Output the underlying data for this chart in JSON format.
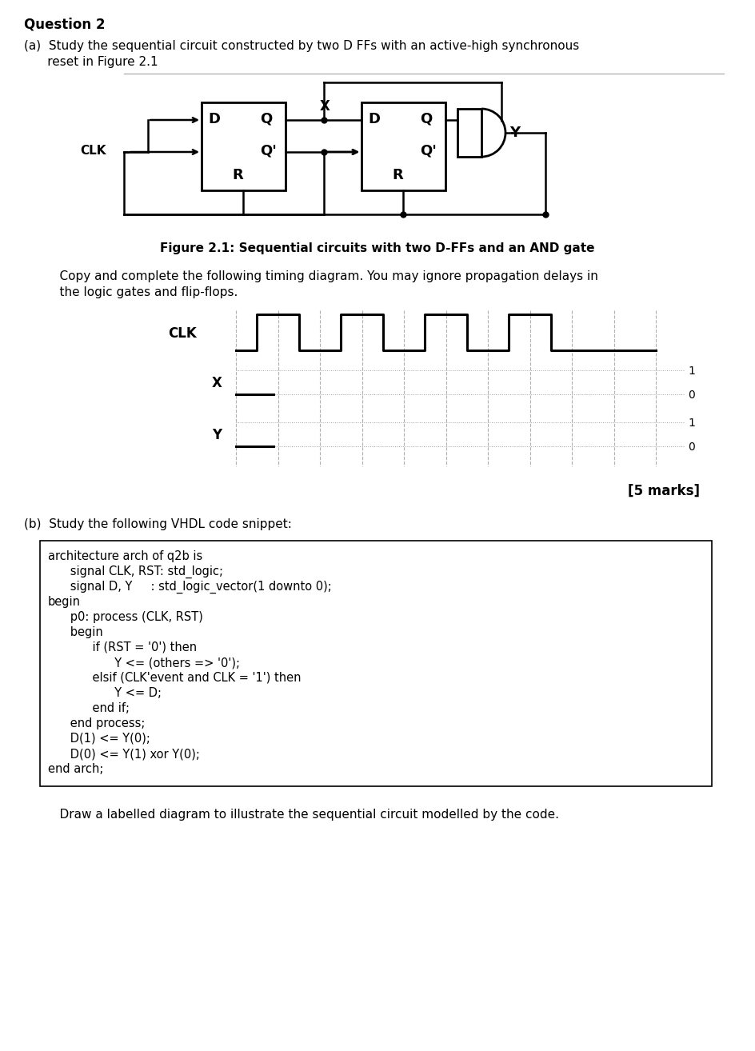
{
  "bg_color": "#ffffff",
  "title": "Question 2",
  "part_a_line1": "(a)  Study the sequential circuit constructed by two D FFs with an active-high synchronous",
  "part_a_line2": "      reset in Figure 2.1",
  "figure_caption": "Figure 2.1: Sequential circuits with two D-FFs and an AND gate",
  "timing_line1": "    Copy and complete the following timing diagram. You may ignore propagation delays in",
  "timing_line2": "    the logic gates and flip-flops.",
  "marks_text": "[5 marks]",
  "part_b_text": "(b)  Study the following VHDL code snippet:",
  "vhdl_lines": [
    "architecture arch of q2b is",
    "      signal CLK, RST: std_logic;",
    "      signal D, Y     : std_logic_vector(1 downto 0);",
    "begin",
    "      p0: process (CLK, RST)",
    "      begin",
    "            if (RST = '0') then",
    "                  Y <= (others => '0');",
    "            elsif (CLK'event and CLK = '1') then",
    "                  Y <= D;",
    "            end if;",
    "      end process;",
    "      D(1) <= Y(0);",
    "      D(0) <= Y(1) xor Y(0);",
    "end arch;"
  ],
  "bottom_text": "    Draw a labelled diagram to illustrate the sequential circuit modelled by the code."
}
